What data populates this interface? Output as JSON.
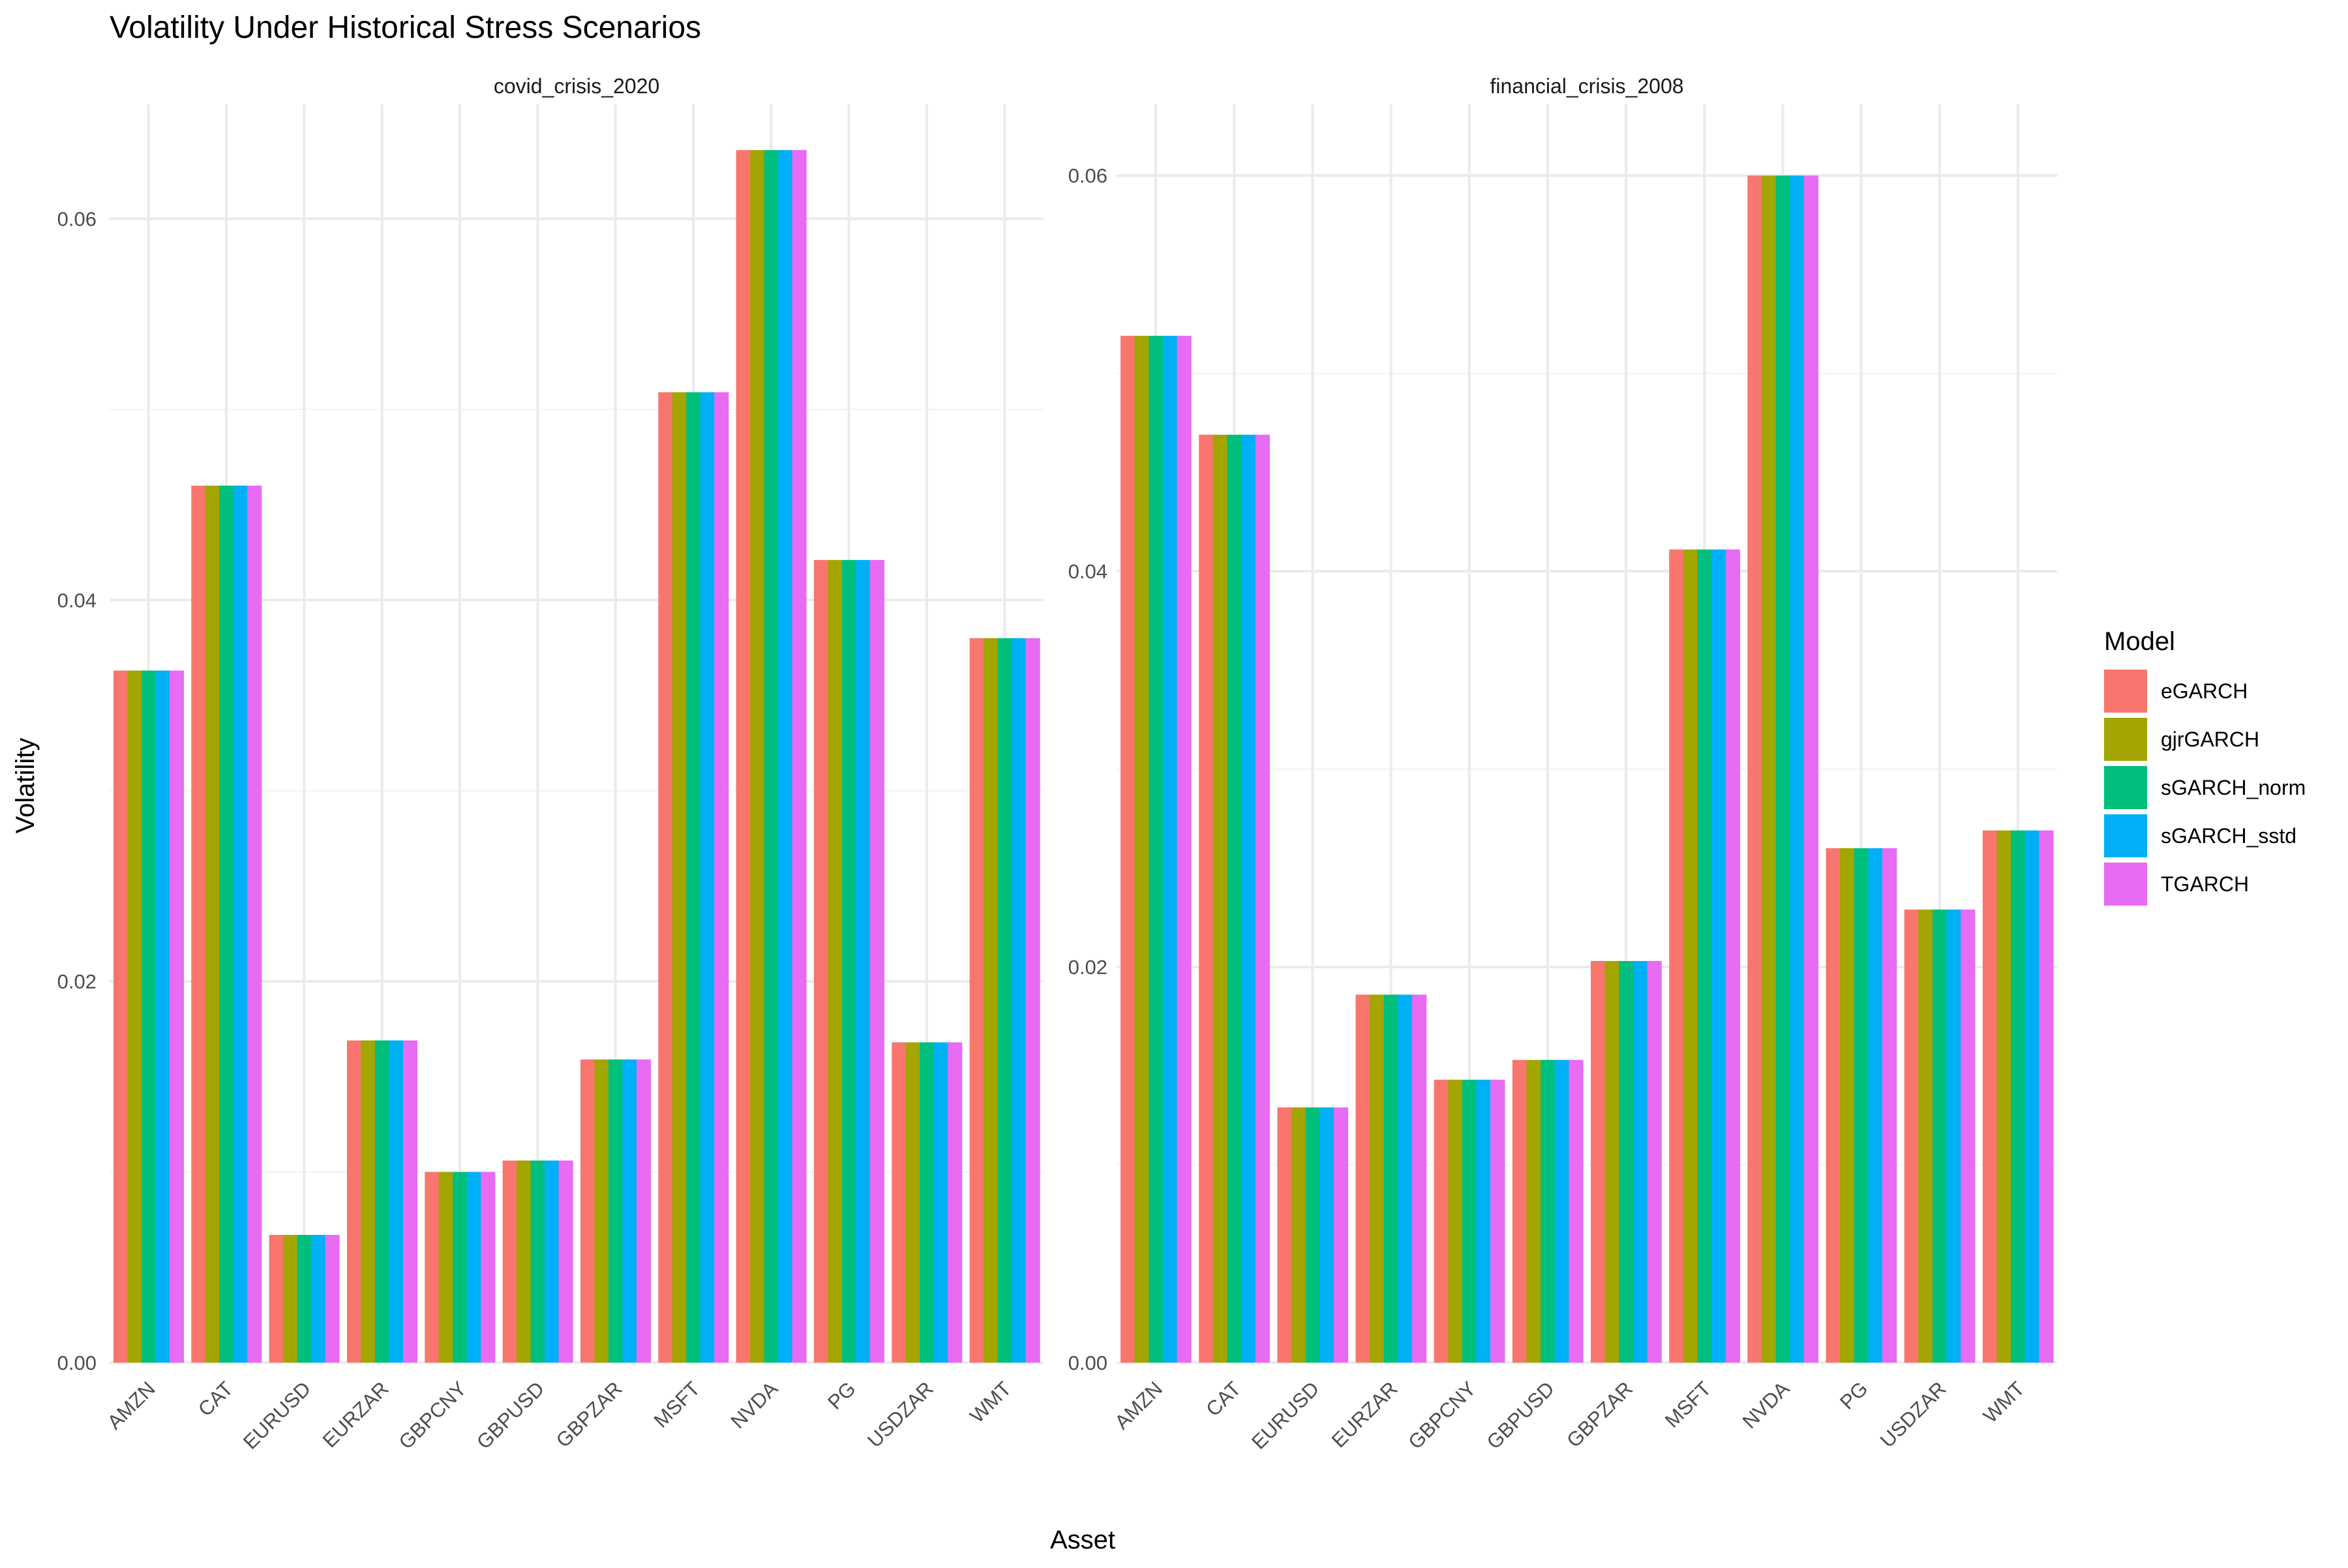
{
  "chart_data": {
    "type": "bar",
    "title": "Volatility Under Historical Stress Scenarios",
    "xlabel": "Asset",
    "ylabel": "Volatility",
    "legend": {
      "title": "Model",
      "placement": "right",
      "entries": [
        {
          "name": "eGARCH",
          "color": "#F8766D"
        },
        {
          "name": "gjrGARCH",
          "color": "#A3A500"
        },
        {
          "name": "sGARCH_norm",
          "color": "#00BF7D"
        },
        {
          "name": "sGARCH_sstd",
          "color": "#00B0F6"
        },
        {
          "name": "TGARCH",
          "color": "#E76BF3"
        }
      ]
    },
    "categories": [
      "AMZN",
      "CAT",
      "EURUSD",
      "EURZAR",
      "GBPCNY",
      "GBPUSD",
      "GBPZAR",
      "MSFT",
      "NVDA",
      "PG",
      "USDZAR",
      "WMT"
    ],
    "grid": true,
    "panels": [
      {
        "name": "covid_crisis_2020",
        "ylim": [
          0,
          0.066
        ],
        "yticks": [
          0.0,
          0.02,
          0.04,
          0.06
        ],
        "ytick_labels": [
          "0.00",
          "0.02",
          "0.04",
          "0.06"
        ],
        "values": [
          0.0363,
          0.046,
          0.0067,
          0.0169,
          0.01,
          0.0106,
          0.0159,
          0.0509,
          0.0636,
          0.0421,
          0.0168,
          0.038
        ]
      },
      {
        "name": "financial_crisis_2008",
        "ylim": [
          0,
          0.0636
        ],
        "yticks": [
          0.0,
          0.02,
          0.04,
          0.06
        ],
        "ytick_labels": [
          "0.00",
          "0.02",
          "0.04",
          "0.06"
        ],
        "values": [
          0.0519,
          0.0469,
          0.0129,
          0.0186,
          0.0143,
          0.0153,
          0.0203,
          0.0411,
          0.06,
          0.026,
          0.0229,
          0.0269
        ]
      }
    ]
  }
}
